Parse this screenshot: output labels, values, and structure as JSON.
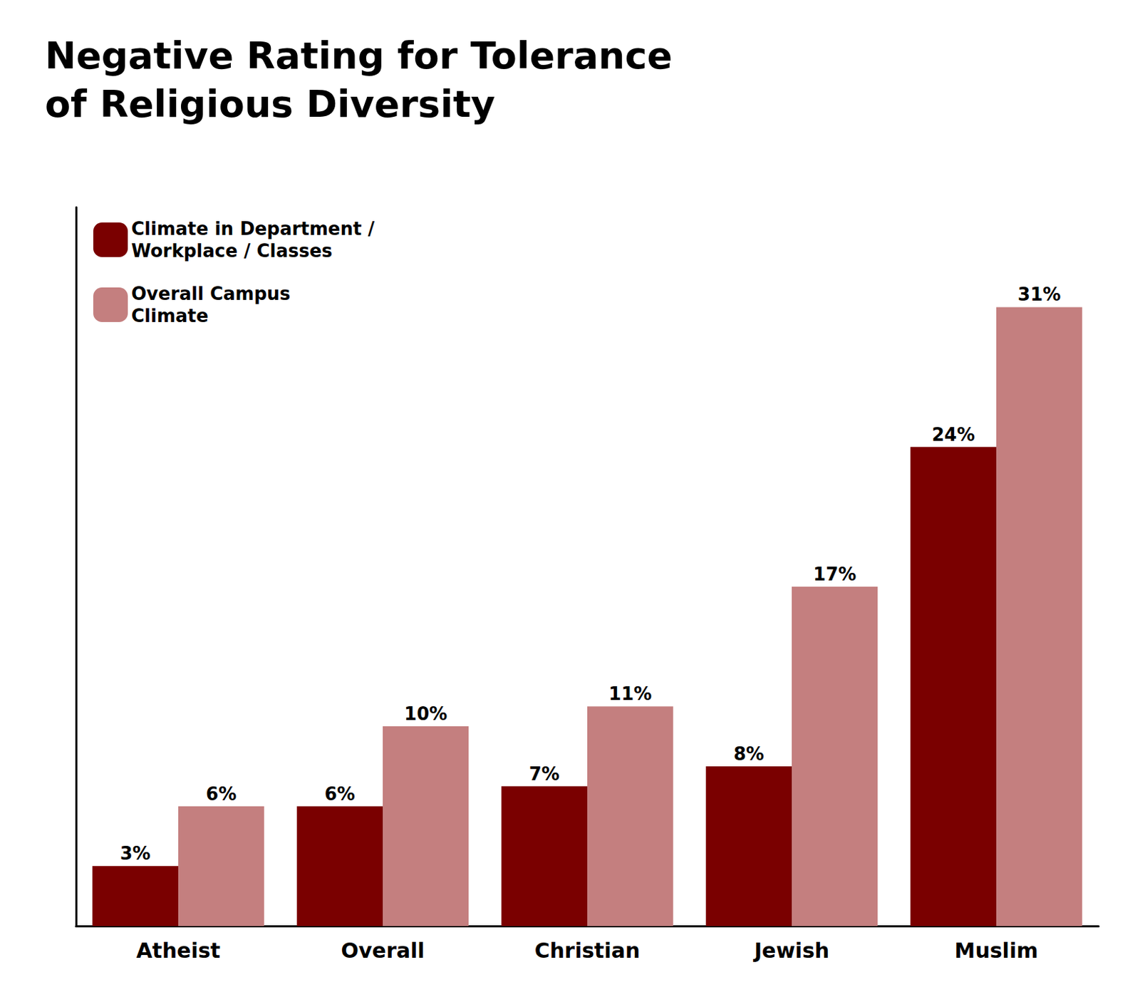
{
  "chart_data": {
    "type": "bar",
    "title": "Negative Rating for Tolerance\nof Religious Diversity",
    "categories": [
      "Atheist",
      "Overall",
      "Christian",
      "Jewish",
      "Muslim"
    ],
    "series": [
      {
        "name": "Climate in Department /\nWorkplace / Classes",
        "color": "#7a0000",
        "values": [
          3,
          6,
          7,
          8,
          24
        ],
        "value_labels": [
          "3%",
          "6%",
          "7%",
          "8%",
          "24%"
        ]
      },
      {
        "name": "Overall Campus\nClimate",
        "color": "#c47f7f",
        "values": [
          6,
          10,
          11,
          17,
          31
        ],
        "value_labels": [
          "6%",
          "10%",
          "11%",
          "17%",
          "31%"
        ]
      }
    ],
    "ylim": [
      0,
      36
    ],
    "grid": false,
    "legend": "upper left",
    "data_labels": true,
    "tick_labels": "x"
  }
}
